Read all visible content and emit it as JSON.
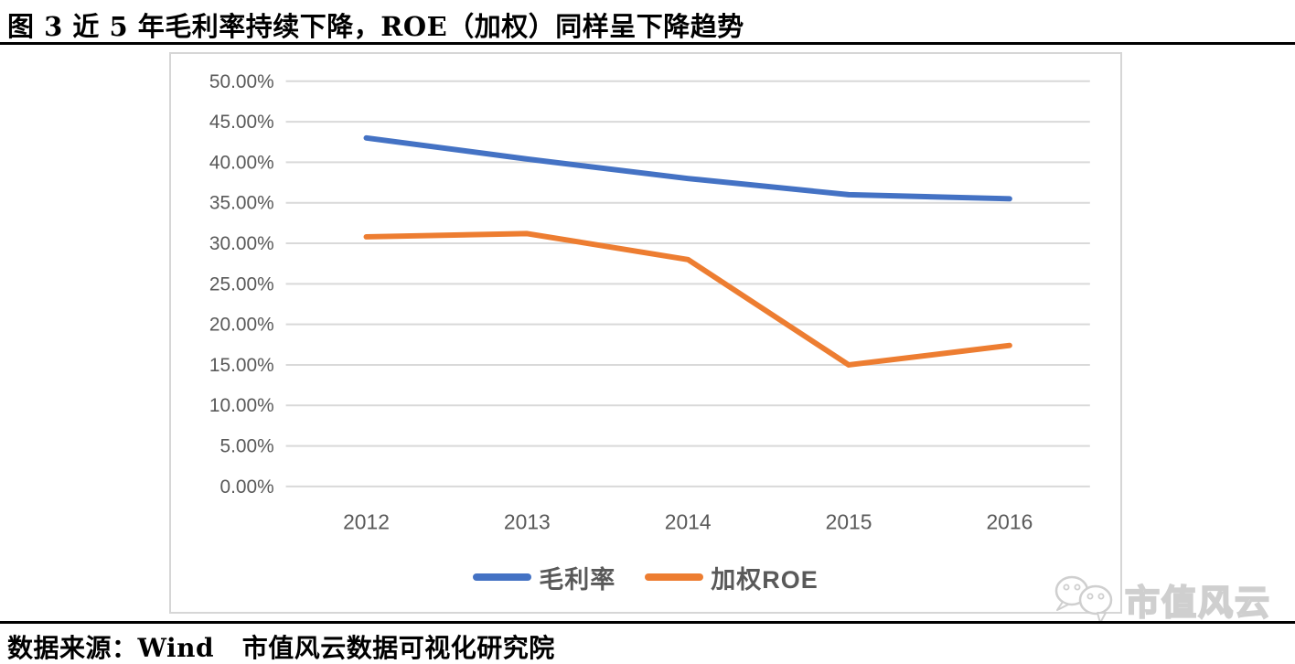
{
  "title": "图 3 近 5 年毛利率持续下降，ROE（加权）同样呈下降趋势",
  "source": "数据来源：Wind   市值风云数据可视化研究院",
  "watermark": {
    "icon": "wechat-icon",
    "text": "市值风云"
  },
  "colors": {
    "series_blue": "#4472C4",
    "series_orange": "#ED7D31",
    "gridline": "#D9D9D9",
    "axis_label": "#595959",
    "chart_border": "#D6D6D6",
    "title_text": "#000000",
    "watermark_gray": "#CFCFCF"
  },
  "chart_data": {
    "type": "line",
    "title": "",
    "categories": [
      "2012",
      "2013",
      "2014",
      "2015",
      "2016"
    ],
    "series": [
      {
        "name": "毛利率",
        "color": "#4472C4",
        "values": [
          43.0,
          40.4,
          38.0,
          36.0,
          35.5
        ]
      },
      {
        "name": "加权ROE",
        "color": "#ED7D31",
        "values": [
          30.8,
          31.2,
          28.0,
          15.0,
          17.4
        ]
      }
    ],
    "y_ticks": [
      "50.00%",
      "45.00%",
      "40.00%",
      "35.00%",
      "30.00%",
      "25.00%",
      "20.00%",
      "15.00%",
      "10.00%",
      "5.00%",
      "0.00%"
    ],
    "ylim": [
      0,
      50
    ],
    "y_tick_step": 5,
    "xlabel": "",
    "ylabel": "",
    "grid": true,
    "legend_position": "bottom"
  }
}
